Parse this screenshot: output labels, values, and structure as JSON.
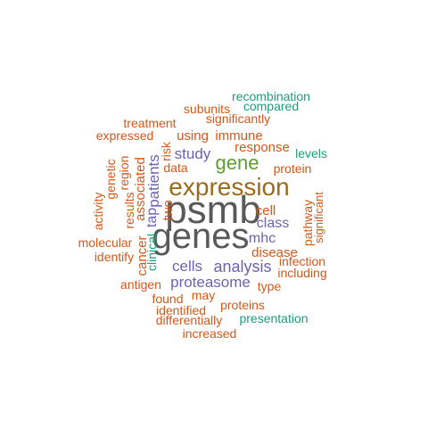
{
  "colors": {
    "gray": "#595959",
    "brown": "#9B6A1A",
    "green": "#5E9D2E",
    "purple": "#6C62B0",
    "orange": "#D2581A",
    "teal": "#1B9E77"
  },
  "words": [
    {
      "text": "psmb",
      "size": 44,
      "color": "gray"
    },
    {
      "text": "genes",
      "size": 40,
      "color": "gray"
    },
    {
      "text": "expression",
      "size": 28,
      "color": "brown"
    },
    {
      "text": "gene",
      "size": 22,
      "color": "green"
    },
    {
      "text": "analysis",
      "size": 18,
      "color": "purple"
    },
    {
      "text": "cells",
      "size": 17,
      "color": "purple"
    },
    {
      "text": "proteasome",
      "size": 17,
      "color": "purple"
    },
    {
      "text": "study",
      "size": 17,
      "color": "purple"
    },
    {
      "text": "patients",
      "size": 17,
      "color": "purple"
    },
    {
      "text": "mhc",
      "size": 16,
      "color": "purple"
    },
    {
      "text": "class",
      "size": 16,
      "color": "purple"
    },
    {
      "text": "tap",
      "size": 16,
      "color": "purple"
    },
    {
      "text": "cancer",
      "size": 15,
      "color": "orange"
    },
    {
      "text": "using",
      "size": 15,
      "color": "orange"
    },
    {
      "text": "immune",
      "size": 15,
      "color": "orange"
    },
    {
      "text": "response",
      "size": 15,
      "color": "orange"
    },
    {
      "text": "disease",
      "size": 15,
      "color": "orange"
    },
    {
      "text": "cell",
      "size": 15,
      "color": "orange"
    },
    {
      "text": "associated",
      "size": 15,
      "color": "orange"
    },
    {
      "text": "two",
      "size": 15,
      "color": "orange"
    },
    {
      "text": "significantly",
      "size": 14,
      "color": "orange"
    },
    {
      "text": "subunits",
      "size": 14,
      "color": "orange"
    },
    {
      "text": "treatment",
      "size": 14,
      "color": "orange"
    },
    {
      "text": "expressed",
      "size": 14,
      "color": "orange"
    },
    {
      "text": "data",
      "size": 14,
      "color": "orange"
    },
    {
      "text": "protein",
      "size": 14,
      "color": "orange"
    },
    {
      "text": "results",
      "size": 14,
      "color": "orange"
    },
    {
      "text": "region",
      "size": 14,
      "color": "orange"
    },
    {
      "text": "risk",
      "size": 14,
      "color": "orange"
    },
    {
      "text": "pathway",
      "size": 14,
      "color": "orange"
    },
    {
      "text": "infection",
      "size": 14,
      "color": "orange"
    },
    {
      "text": "including",
      "size": 14,
      "color": "orange"
    },
    {
      "text": "type",
      "size": 14,
      "color": "orange"
    },
    {
      "text": "may",
      "size": 14,
      "color": "orange"
    },
    {
      "text": "found",
      "size": 14,
      "color": "orange"
    },
    {
      "text": "identified",
      "size": 14,
      "color": "orange"
    },
    {
      "text": "proteins",
      "size": 14,
      "color": "orange"
    },
    {
      "text": "antigen",
      "size": 14,
      "color": "orange"
    },
    {
      "text": "molecular",
      "size": 14,
      "color": "orange"
    },
    {
      "text": "identify",
      "size": 14,
      "color": "orange"
    },
    {
      "text": "activity",
      "size": 14,
      "color": "orange"
    },
    {
      "text": "genetic",
      "size": 14,
      "color": "orange"
    },
    {
      "text": "differentially",
      "size": 14,
      "color": "orange"
    },
    {
      "text": "increased",
      "size": 14,
      "color": "orange"
    },
    {
      "text": "significant",
      "size": 13,
      "color": "orange"
    },
    {
      "text": "recombination",
      "size": 14,
      "color": "teal"
    },
    {
      "text": "compared",
      "size": 14,
      "color": "teal"
    },
    {
      "text": "levels",
      "size": 14,
      "color": "teal"
    },
    {
      "text": "presentation",
      "size": 14,
      "color": "teal"
    },
    {
      "text": "clinical",
      "size": 14,
      "color": "teal"
    }
  ]
}
